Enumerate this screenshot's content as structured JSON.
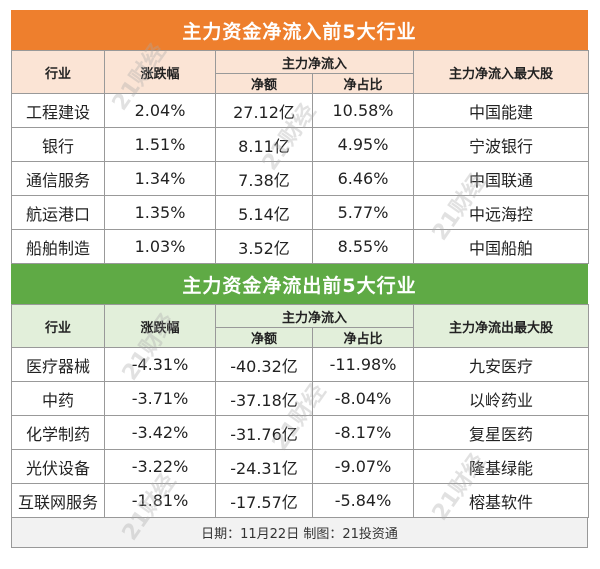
{
  "inflow": {
    "title": "主力资金净流入前5大行业",
    "headers": {
      "industry": "行业",
      "change": "涨跌幅",
      "net_group": "主力净流入",
      "net_amount": "净额",
      "net_ratio": "净占比",
      "top_stock": "主力净流入最大股"
    },
    "rows": [
      {
        "industry": "工程建设",
        "change": "2.04%",
        "amount": "27.12亿",
        "ratio": "10.58%",
        "stock": "中国能建"
      },
      {
        "industry": "银行",
        "change": "1.51%",
        "amount": "8.11亿",
        "ratio": "4.95%",
        "stock": "宁波银行"
      },
      {
        "industry": "通信服务",
        "change": "1.34%",
        "amount": "7.38亿",
        "ratio": "6.46%",
        "stock": "中国联通"
      },
      {
        "industry": "航运港口",
        "change": "1.35%",
        "amount": "5.14亿",
        "ratio": "5.77%",
        "stock": "中远海控"
      },
      {
        "industry": "船舶制造",
        "change": "1.03%",
        "amount": "3.52亿",
        "ratio": "8.55%",
        "stock": "中国船舶"
      }
    ]
  },
  "outflow": {
    "title": "主力资金净流出前5大行业",
    "headers": {
      "industry": "行业",
      "change": "涨跌幅",
      "net_group": "主力净流入",
      "net_amount": "净额",
      "net_ratio": "净占比",
      "top_stock": "主力净流出最大股"
    },
    "rows": [
      {
        "industry": "医疗器械",
        "change": "-4.31%",
        "amount": "-40.32亿",
        "ratio": "-11.98%",
        "stock": "九安医疗"
      },
      {
        "industry": "中药",
        "change": "-3.71%",
        "amount": "-37.18亿",
        "ratio": "-8.04%",
        "stock": "以岭药业"
      },
      {
        "industry": "化学制药",
        "change": "-3.42%",
        "amount": "-31.76亿",
        "ratio": "-8.17%",
        "stock": "复星医药"
      },
      {
        "industry": "光伏设备",
        "change": "-3.22%",
        "amount": "-24.31亿",
        "ratio": "-9.07%",
        "stock": "隆基绿能"
      },
      {
        "industry": "互联网服务",
        "change": "-1.81%",
        "amount": "-17.57亿",
        "ratio": "-5.84%",
        "stock": "榕基软件"
      }
    ]
  },
  "footer": "日期：11月22日 制图：21投资通",
  "watermark": "21财经",
  "colors": {
    "inflow_banner": "#ee7f2d",
    "outflow_banner": "#5faa45",
    "inflow_header": "#fbe4d5",
    "outflow_header": "#e2efda"
  }
}
